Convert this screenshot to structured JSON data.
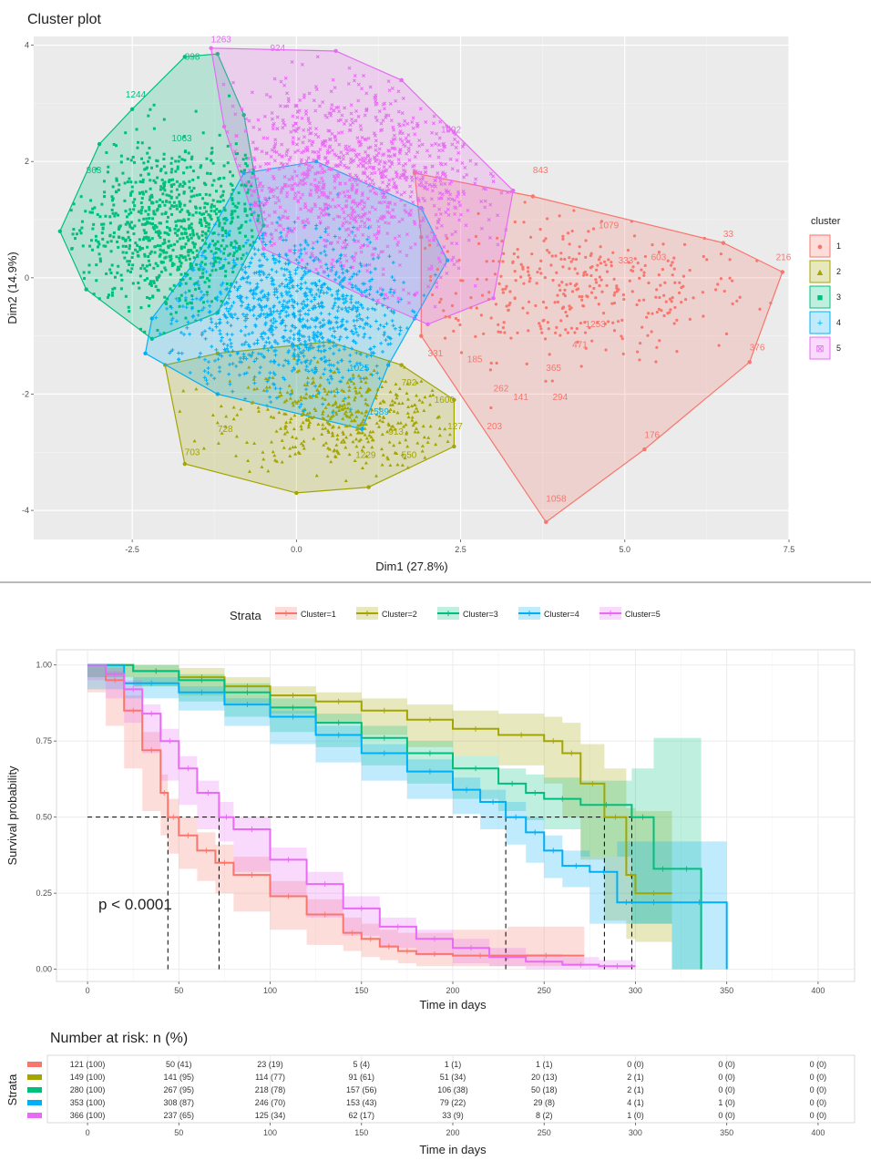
{
  "cluster_plot": {
    "title": "Cluster plot",
    "legend_title": "cluster",
    "legend_labels": [
      "1",
      "2",
      "3",
      "4",
      "5"
    ],
    "colors": [
      "#F8766D",
      "#A3A500",
      "#00BF7D",
      "#00B0F6",
      "#E76BF3"
    ],
    "point_labels": [
      {
        "text": "1263",
        "cluster": 5,
        "x": -1.3,
        "y": 4.05
      },
      {
        "text": "924",
        "cluster": 5,
        "x": -0.4,
        "y": 3.9
      },
      {
        "text": "898",
        "cluster": 3,
        "x": -1.7,
        "y": 3.75
      },
      {
        "text": "1244",
        "cluster": 3,
        "x": -2.6,
        "y": 3.1
      },
      {
        "text": "1063",
        "cluster": 3,
        "x": -1.9,
        "y": 2.35
      },
      {
        "text": "863",
        "cluster": 3,
        "x": -3.2,
        "y": 1.8
      },
      {
        "text": "1092",
        "cluster": 5,
        "x": 2.2,
        "y": 2.5
      },
      {
        "text": "843",
        "cluster": 1,
        "x": 3.6,
        "y": 1.8
      },
      {
        "text": "1079",
        "cluster": 1,
        "x": 4.6,
        "y": 0.85
      },
      {
        "text": "33",
        "cluster": 1,
        "x": 6.5,
        "y": 0.7
      },
      {
        "text": "216",
        "cluster": 1,
        "x": 7.3,
        "y": 0.3
      },
      {
        "text": "603",
        "cluster": 1,
        "x": 5.4,
        "y": 0.3
      },
      {
        "text": "333",
        "cluster": 1,
        "x": 4.9,
        "y": 0.25
      },
      {
        "text": "376",
        "cluster": 1,
        "x": 6.9,
        "y": -1.25
      },
      {
        "text": "365",
        "cluster": 1,
        "x": 3.8,
        "y": -1.6
      },
      {
        "text": "294",
        "cluster": 1,
        "x": 3.9,
        "y": -2.1
      },
      {
        "text": "141",
        "cluster": 1,
        "x": 3.3,
        "y": -2.1
      },
      {
        "text": "262",
        "cluster": 1,
        "x": 3.0,
        "y": -1.95
      },
      {
        "text": "203",
        "cluster": 1,
        "x": 2.9,
        "y": -2.6
      },
      {
        "text": "176",
        "cluster": 1,
        "x": 5.3,
        "y": -2.75
      },
      {
        "text": "1058",
        "cluster": 1,
        "x": 3.8,
        "y": -3.85
      },
      {
        "text": "185",
        "cluster": 1,
        "x": 2.6,
        "y": -1.45
      },
      {
        "text": "331",
        "cluster": 1,
        "x": 2.0,
        "y": -1.35
      },
      {
        "text": "471",
        "cluster": 1,
        "x": 4.2,
        "y": -1.2
      },
      {
        "text": "1253",
        "cluster": 1,
        "x": 4.4,
        "y": -0.85
      },
      {
        "text": "1600",
        "cluster": 2,
        "x": 2.1,
        "y": -2.15
      },
      {
        "text": "792",
        "cluster": 2,
        "x": 1.6,
        "y": -1.85
      },
      {
        "text": "127",
        "cluster": 2,
        "x": 2.3,
        "y": -2.6
      },
      {
        "text": "550",
        "cluster": 2,
        "x": 1.6,
        "y": -3.1
      },
      {
        "text": "913",
        "cluster": 2,
        "x": 1.4,
        "y": -2.7
      },
      {
        "text": "728",
        "cluster": 2,
        "x": -1.2,
        "y": -2.65
      },
      {
        "text": "703",
        "cluster": 2,
        "x": -1.7,
        "y": -3.05
      },
      {
        "text": "1229",
        "cluster": 2,
        "x": 0.9,
        "y": -3.1
      },
      {
        "text": "1589",
        "cluster": 4,
        "x": 1.1,
        "y": -2.35
      },
      {
        "text": "1025",
        "cluster": 4,
        "x": 0.8,
        "y": -1.6
      }
    ],
    "chart_data": {
      "type": "scatter",
      "title": "Cluster plot",
      "xlabel": "Dim1 (27.8%)",
      "ylabel": "Dim2 (14.9%)",
      "xlim": [
        -4.0,
        7.5
      ],
      "ylim": [
        -4.5,
        4.15
      ],
      "x_ticks": [
        -2.5,
        0.0,
        2.5,
        5.0,
        7.5
      ],
      "x_tick_labels": [
        "-2.5",
        "0.0",
        "2.5",
        "5.0",
        "7.5"
      ],
      "y_ticks": [
        -4,
        -2,
        0,
        2,
        4
      ],
      "y_tick_labels": [
        "-4",
        "-2",
        "0",
        "2",
        "4"
      ],
      "grid": true,
      "legend": "right",
      "series": [
        {
          "name": "1",
          "center": [
            4.3,
            -0.2
          ],
          "spread": [
            1.3,
            0.6
          ],
          "n": 121,
          "hull": [
            [
              1.8,
              1.8
            ],
            [
              3.6,
              1.4
            ],
            [
              6.5,
              0.6
            ],
            [
              7.4,
              0.1
            ],
            [
              6.9,
              -1.45
            ],
            [
              5.3,
              -2.95
            ],
            [
              3.8,
              -4.2
            ],
            [
              1.9,
              -1.0
            ],
            [
              1.9,
              0.7
            ]
          ]
        },
        {
          "name": "2",
          "center": [
            0.7,
            -2.4
          ],
          "spread": [
            0.85,
            0.45
          ],
          "n": 149,
          "hull": [
            [
              -2.0,
              -1.5
            ],
            [
              -1.7,
              -3.2
            ],
            [
              0.0,
              -3.7
            ],
            [
              1.1,
              -3.6
            ],
            [
              2.4,
              -2.9
            ],
            [
              2.4,
              -2.1
            ],
            [
              1.6,
              -1.5
            ],
            [
              0.5,
              -1.1
            ],
            [
              -1.2,
              -1.3
            ]
          ]
        },
        {
          "name": "3",
          "center": [
            -1.8,
            0.8
          ],
          "spread": [
            0.9,
            0.8
          ],
          "n": 280,
          "hull": [
            [
              -3.6,
              0.8
            ],
            [
              -3.0,
              2.3
            ],
            [
              -2.5,
              2.9
            ],
            [
              -1.7,
              3.8
            ],
            [
              -1.2,
              3.85
            ],
            [
              -0.8,
              2.8
            ],
            [
              -0.5,
              0.9
            ],
            [
              -1.2,
              -0.6
            ],
            [
              -2.2,
              -1.05
            ],
            [
              -3.2,
              -0.2
            ]
          ]
        },
        {
          "name": "4",
          "center": [
            -0.1,
            -0.6
          ],
          "spread": [
            0.9,
            0.75
          ],
          "n": 353,
          "hull": [
            [
              -2.2,
              -0.7
            ],
            [
              -1.6,
              0.2
            ],
            [
              -0.8,
              1.8
            ],
            [
              0.3,
              2.0
            ],
            [
              1.9,
              1.2
            ],
            [
              2.3,
              0.3
            ],
            [
              1.8,
              -0.7
            ],
            [
              1.4,
              -1.5
            ],
            [
              1.0,
              -2.6
            ],
            [
              -1.2,
              -2.0
            ],
            [
              -2.3,
              -1.3
            ]
          ]
        },
        {
          "name": "5",
          "center": [
            0.9,
            1.7
          ],
          "spread": [
            1.15,
            0.85
          ],
          "n": 366,
          "hull": [
            [
              -1.3,
              3.95
            ],
            [
              0.6,
              3.9
            ],
            [
              1.6,
              3.4
            ],
            [
              2.4,
              2.5
            ],
            [
              3.3,
              1.5
            ],
            [
              3.0,
              -0.35
            ],
            [
              2.0,
              -0.8
            ],
            [
              1.0,
              -0.3
            ],
            [
              -0.5,
              0.5
            ],
            [
              -1.1,
              2.6
            ]
          ]
        }
      ],
      "hull_vertex_labels": true
    }
  },
  "survival_plot": {
    "p_value": "p < 0.0001",
    "legend_title": "Strata",
    "legend_labels": [
      "Cluster=1",
      "Cluster=2",
      "Cluster=3",
      "Cluster=4",
      "Cluster=5"
    ],
    "colors": [
      "#F8766D",
      "#A3A500",
      "#00BF7D",
      "#00B0F6",
      "#E76BF3"
    ],
    "median_times": [
      44,
      283,
      298,
      229,
      72
    ],
    "chart_data": {
      "type": "line",
      "xlabel": "Time in days",
      "ylabel": "Survival probability",
      "xlim": [
        -17,
        420
      ],
      "ylim": [
        -0.04,
        1.05
      ],
      "x_ticks": [
        0,
        50,
        100,
        150,
        200,
        250,
        300,
        350,
        400
      ],
      "x_tick_labels": [
        "0",
        "50",
        "100",
        "150",
        "200",
        "250",
        "300",
        "350",
        "400"
      ],
      "y_ticks": [
        0.0,
        0.25,
        0.5,
        0.75,
        1.0
      ],
      "y_tick_labels": [
        "0.00",
        "0.25",
        "0.50",
        "0.75",
        "1.00"
      ],
      "grid": true,
      "legend": "top",
      "median_line": 0.5,
      "series": [
        {
          "name": "Cluster=1",
          "x": [
            0,
            10,
            20,
            30,
            40,
            44,
            50,
            60,
            70,
            80,
            100,
            120,
            140,
            150,
            160,
            170,
            180,
            200,
            230,
            272
          ],
          "y": [
            1.0,
            0.95,
            0.85,
            0.72,
            0.58,
            0.5,
            0.44,
            0.39,
            0.35,
            0.31,
            0.24,
            0.18,
            0.12,
            0.1,
            0.075,
            0.06,
            0.05,
            0.045,
            0.045,
            0.045
          ],
          "lower": [
            1.0,
            0.91,
            0.8,
            0.66,
            0.52,
            0.44,
            0.38,
            0.33,
            0.29,
            0.25,
            0.19,
            0.13,
            0.08,
            0.06,
            0.04,
            0.03,
            0.02,
            0.01,
            0.01,
            0.01
          ],
          "upper": [
            1.0,
            0.98,
            0.9,
            0.78,
            0.64,
            0.56,
            0.5,
            0.45,
            0.41,
            0.37,
            0.29,
            0.23,
            0.17,
            0.15,
            0.13,
            0.12,
            0.12,
            0.13,
            0.14,
            0.14
          ]
        },
        {
          "name": "Cluster=2",
          "x": [
            0,
            25,
            50,
            75,
            100,
            125,
            150,
            175,
            200,
            225,
            250,
            260,
            270,
            283,
            295,
            300,
            320
          ],
          "y": [
            1.0,
            0.98,
            0.96,
            0.93,
            0.9,
            0.88,
            0.85,
            0.82,
            0.79,
            0.77,
            0.75,
            0.71,
            0.61,
            0.5,
            0.31,
            0.25,
            0.25
          ],
          "lower": [
            1.0,
            0.96,
            0.93,
            0.9,
            0.87,
            0.84,
            0.81,
            0.77,
            0.73,
            0.7,
            0.67,
            0.61,
            0.5,
            0.36,
            0.16,
            0.1,
            0.09
          ],
          "upper": [
            1.0,
            1.0,
            0.99,
            0.96,
            0.93,
            0.91,
            0.89,
            0.87,
            0.85,
            0.84,
            0.83,
            0.81,
            0.74,
            0.66,
            0.53,
            0.52,
            0.52
          ]
        },
        {
          "name": "Cluster=3",
          "x": [
            0,
            25,
            50,
            75,
            100,
            125,
            150,
            175,
            200,
            225,
            240,
            250,
            270,
            298,
            310,
            320,
            336
          ],
          "y": [
            1.0,
            0.98,
            0.95,
            0.91,
            0.86,
            0.81,
            0.76,
            0.71,
            0.66,
            0.61,
            0.58,
            0.56,
            0.54,
            0.5,
            0.33,
            0.33,
            0.0
          ],
          "lower": [
            1.0,
            0.96,
            0.93,
            0.88,
            0.83,
            0.78,
            0.73,
            0.67,
            0.61,
            0.56,
            0.52,
            0.49,
            0.46,
            0.37,
            0.15,
            0.15,
            0.0
          ],
          "upper": [
            1.0,
            1.0,
            0.97,
            0.94,
            0.89,
            0.84,
            0.8,
            0.75,
            0.7,
            0.66,
            0.64,
            0.63,
            0.62,
            0.66,
            0.76,
            0.76,
            0.0
          ]
        },
        {
          "name": "Cluster=4",
          "x": [
            0,
            20,
            50,
            75,
            100,
            125,
            150,
            175,
            200,
            215,
            229,
            240,
            250,
            260,
            275,
            290,
            300,
            320,
            350
          ],
          "y": [
            1.0,
            0.94,
            0.91,
            0.87,
            0.83,
            0.77,
            0.71,
            0.65,
            0.59,
            0.55,
            0.5,
            0.45,
            0.39,
            0.34,
            0.32,
            0.22,
            0.22,
            0.22,
            0.0
          ],
          "lower": [
            1.0,
            0.92,
            0.89,
            0.85,
            0.8,
            0.74,
            0.68,
            0.62,
            0.56,
            0.51,
            0.46,
            0.41,
            0.35,
            0.3,
            0.27,
            0.15,
            0.15,
            0.15,
            0.0
          ],
          "upper": [
            1.0,
            0.96,
            0.93,
            0.89,
            0.85,
            0.8,
            0.74,
            0.69,
            0.63,
            0.59,
            0.55,
            0.5,
            0.44,
            0.39,
            0.37,
            0.42,
            0.42,
            0.42,
            0.0
          ]
        },
        {
          "name": "Cluster=5",
          "x": [
            0,
            10,
            20,
            30,
            40,
            50,
            60,
            72,
            80,
            100,
            120,
            140,
            160,
            180,
            200,
            220,
            240,
            260,
            280,
            300
          ],
          "y": [
            1.0,
            0.97,
            0.92,
            0.84,
            0.75,
            0.66,
            0.58,
            0.5,
            0.46,
            0.36,
            0.28,
            0.2,
            0.14,
            0.1,
            0.07,
            0.04,
            0.025,
            0.015,
            0.01,
            0.01
          ],
          "lower": [
            1.0,
            0.95,
            0.89,
            0.81,
            0.71,
            0.62,
            0.54,
            0.46,
            0.42,
            0.32,
            0.24,
            0.17,
            0.11,
            0.07,
            0.045,
            0.02,
            0.01,
            0.0,
            0.0,
            0.0
          ],
          "upper": [
            1.0,
            0.99,
            0.95,
            0.87,
            0.79,
            0.7,
            0.62,
            0.55,
            0.5,
            0.4,
            0.32,
            0.24,
            0.17,
            0.13,
            0.1,
            0.07,
            0.05,
            0.04,
            0.03,
            0.03
          ]
        }
      ]
    }
  },
  "risk_table": {
    "title": "Number at risk: n (%)",
    "y_title": "Strata",
    "xlabel": "Time in days",
    "times": [
      "0",
      "50",
      "100",
      "150",
      "200",
      "250",
      "300",
      "350",
      "400"
    ],
    "rows": [
      {
        "cells": [
          "121 (100)",
          "50 (41)",
          "23 (19)",
          "5 (4)",
          "1 (1)",
          "1 (1)",
          "0 (0)",
          "0 (0)",
          "0 (0)"
        ]
      },
      {
        "cells": [
          "149 (100)",
          "141 (95)",
          "114 (77)",
          "91 (61)",
          "51 (34)",
          "20 (13)",
          "2 (1)",
          "0 (0)",
          "0 (0)"
        ]
      },
      {
        "cells": [
          "280 (100)",
          "267 (95)",
          "218 (78)",
          "157 (56)",
          "106 (38)",
          "50 (18)",
          "2 (1)",
          "0 (0)",
          "0 (0)"
        ]
      },
      {
        "cells": [
          "353 (100)",
          "308 (87)",
          "246 (70)",
          "153 (43)",
          "79 (22)",
          "29 (8)",
          "4 (1)",
          "1 (0)",
          "0 (0)"
        ]
      },
      {
        "cells": [
          "366 (100)",
          "237 (65)",
          "125 (34)",
          "62 (17)",
          "33 (9)",
          "8 (2)",
          "1 (0)",
          "0 (0)",
          "0 (0)"
        ]
      }
    ]
  }
}
